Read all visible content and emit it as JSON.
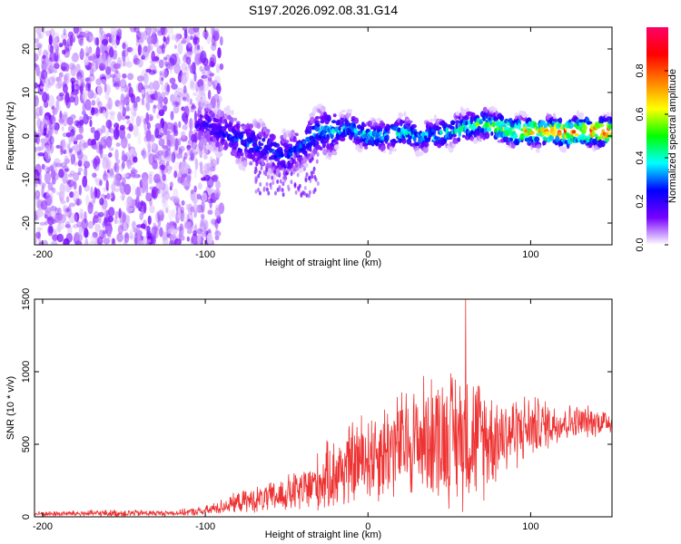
{
  "figure": {
    "title": "S197.2026.092.08.31.G14"
  },
  "chart_data": [
    {
      "type": "heatmap",
      "panel": "top",
      "title": "",
      "xlabel": "Height of straight line (km)",
      "ylabel": "Frequency (Hz)",
      "xlim": [
        -205,
        150
      ],
      "ylim": [
        -25,
        25
      ],
      "xticks": [
        -200,
        -100,
        0,
        100
      ],
      "xtick_labels": [
        "-200",
        "-100",
        "0",
        "100"
      ],
      "yticks": [
        -20,
        -10,
        0,
        10,
        20
      ],
      "ytick_labels": [
        "-20",
        "-10",
        "0",
        "10",
        "20"
      ],
      "colorbar": {
        "label": "Normalized spectral amplitude",
        "range": [
          0,
          1
        ],
        "ticks": [
          0.0,
          0.2,
          0.4,
          0.6,
          0.8
        ],
        "tick_labels": [
          "0.0",
          "0.2",
          "0.4",
          "0.6",
          "0.8"
        ],
        "colormap": [
          "#ffffff",
          "#7700ff",
          "#0000ff",
          "#00ffff",
          "#00ff00",
          "#ffff00",
          "#ff8000",
          "#ff0000",
          "#ff0066"
        ]
      },
      "ridge": {
        "description_points_x": [
          -100,
          -80,
          -60,
          -50,
          -40,
          -30,
          -20,
          -10,
          0,
          10,
          20,
          30,
          40,
          50,
          60,
          70,
          80,
          90,
          100,
          110,
          120,
          130,
          140,
          150
        ],
        "description_points_freq": [
          3,
          -1,
          -3,
          -5,
          -2,
          1,
          1,
          2,
          0,
          0,
          1,
          0,
          0,
          1,
          2,
          3,
          2,
          1,
          1,
          1,
          1,
          1,
          1,
          1
        ],
        "peak_amplitude": [
          0.2,
          0.3,
          0.3,
          0.3,
          0.3,
          0.35,
          0.4,
          0.4,
          0.45,
          0.4,
          0.45,
          0.4,
          0.4,
          0.45,
          0.5,
          0.55,
          0.6,
          0.7,
          0.75,
          0.8,
          0.85,
          0.9,
          0.9,
          0.9
        ]
      },
      "noise_region_x": [
        -205,
        -100
      ]
    },
    {
      "type": "line",
      "panel": "bottom",
      "title": "",
      "xlabel": "Height of straight line (km)",
      "ylabel": "SNR (10 * v/v)",
      "xlim": [
        -205,
        150
      ],
      "ylim": [
        0,
        1500
      ],
      "xticks": [
        -200,
        -100,
        0,
        100
      ],
      "xtick_labels": [
        "-200",
        "-100",
        "0",
        "100"
      ],
      "yticks": [
        0,
        500,
        1000,
        1500
      ],
      "ytick_labels": [
        "0",
        "500",
        "1000",
        "1500"
      ],
      "color": "#ee3333",
      "envelope": {
        "x": [
          -205,
          -150,
          -120,
          -100,
          -80,
          -60,
          -40,
          -20,
          0,
          20,
          40,
          60,
          70,
          80,
          100,
          120,
          150
        ],
        "mean": [
          20,
          25,
          25,
          40,
          100,
          130,
          180,
          300,
          420,
          500,
          560,
          560,
          540,
          560,
          620,
          650,
          660
        ],
        "amplitude": [
          20,
          30,
          20,
          40,
          80,
          120,
          180,
          300,
          380,
          420,
          500,
          560,
          480,
          350,
          250,
          150,
          100
        ]
      },
      "peak": {
        "x": 60,
        "y": 1500
      }
    }
  ]
}
